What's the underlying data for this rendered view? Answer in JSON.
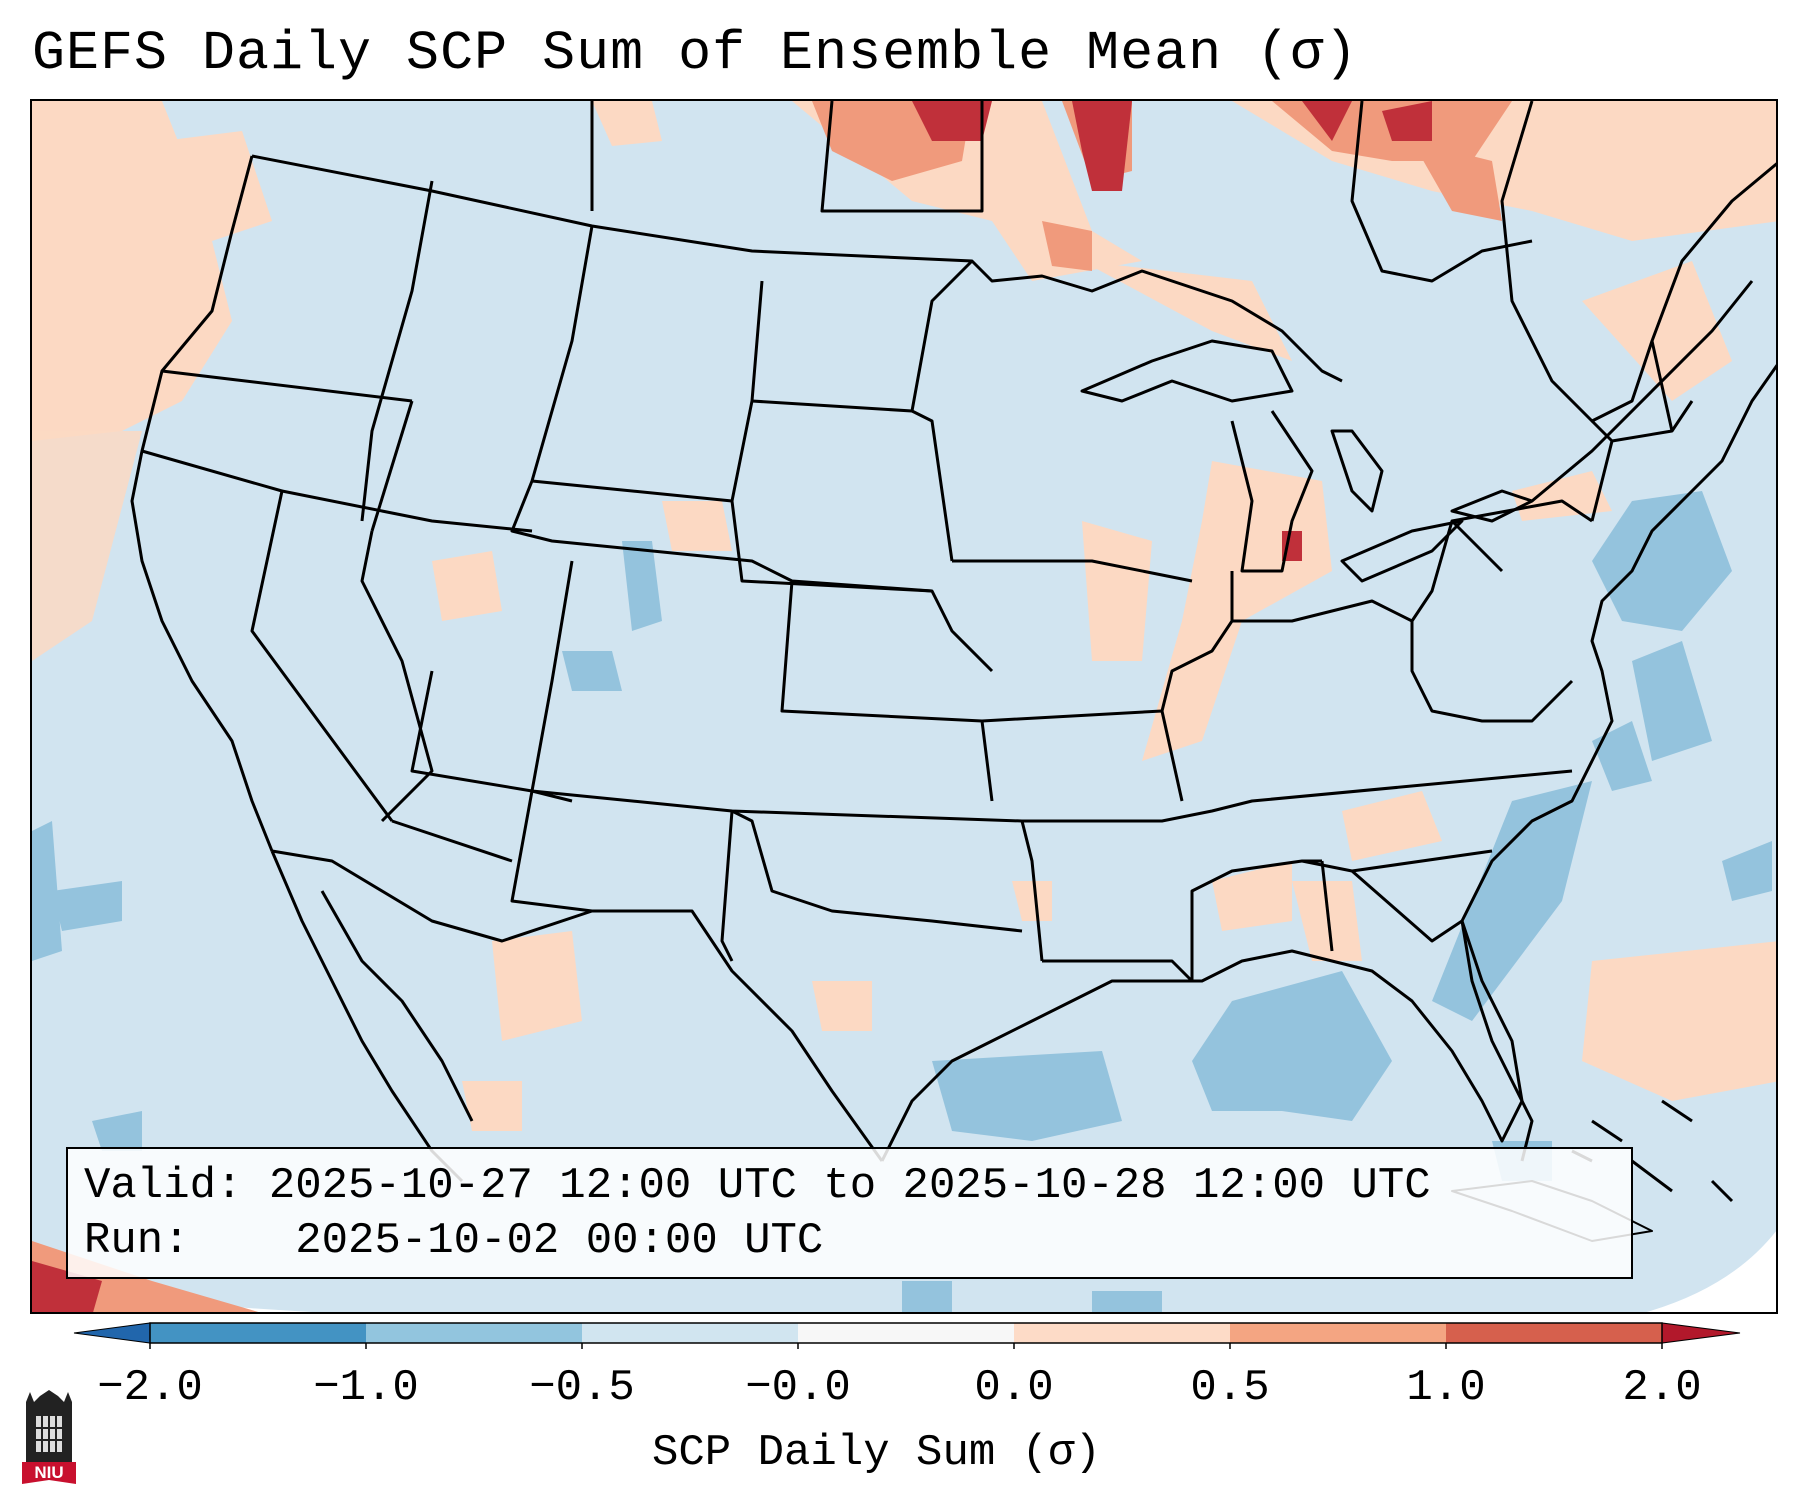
{
  "title": "GEFS Daily SCP Sum of Ensemble Mean (σ)",
  "info": {
    "valid_label": "Valid:",
    "valid_value": "2025-10-27 12:00 UTC to 2025-10-28 12:00 UTC",
    "run_label": "Run:",
    "run_value": "2025-10-02 00:00 UTC"
  },
  "colorbar": {
    "label": "SCP Daily Sum (σ)",
    "ticks": [
      "−2.0",
      "−1.0",
      "−0.5",
      "−0.0",
      "0.0",
      "0.5",
      "1.0",
      "2.0"
    ],
    "colors": [
      "#4393c3",
      "#92c5de",
      "#d1e5f0",
      "#f7f7f7",
      "#fddbc7",
      "#f4a582",
      "#d6604d",
      "#b2182b"
    ],
    "extend": "both"
  },
  "map": {
    "background_color": "#d1e5f0",
    "region": "CONUS",
    "projection_outside_color": "#ffffff"
  },
  "logo": {
    "text": "NIU",
    "icon": "niu-castle-icon",
    "color": "#c8102e"
  }
}
